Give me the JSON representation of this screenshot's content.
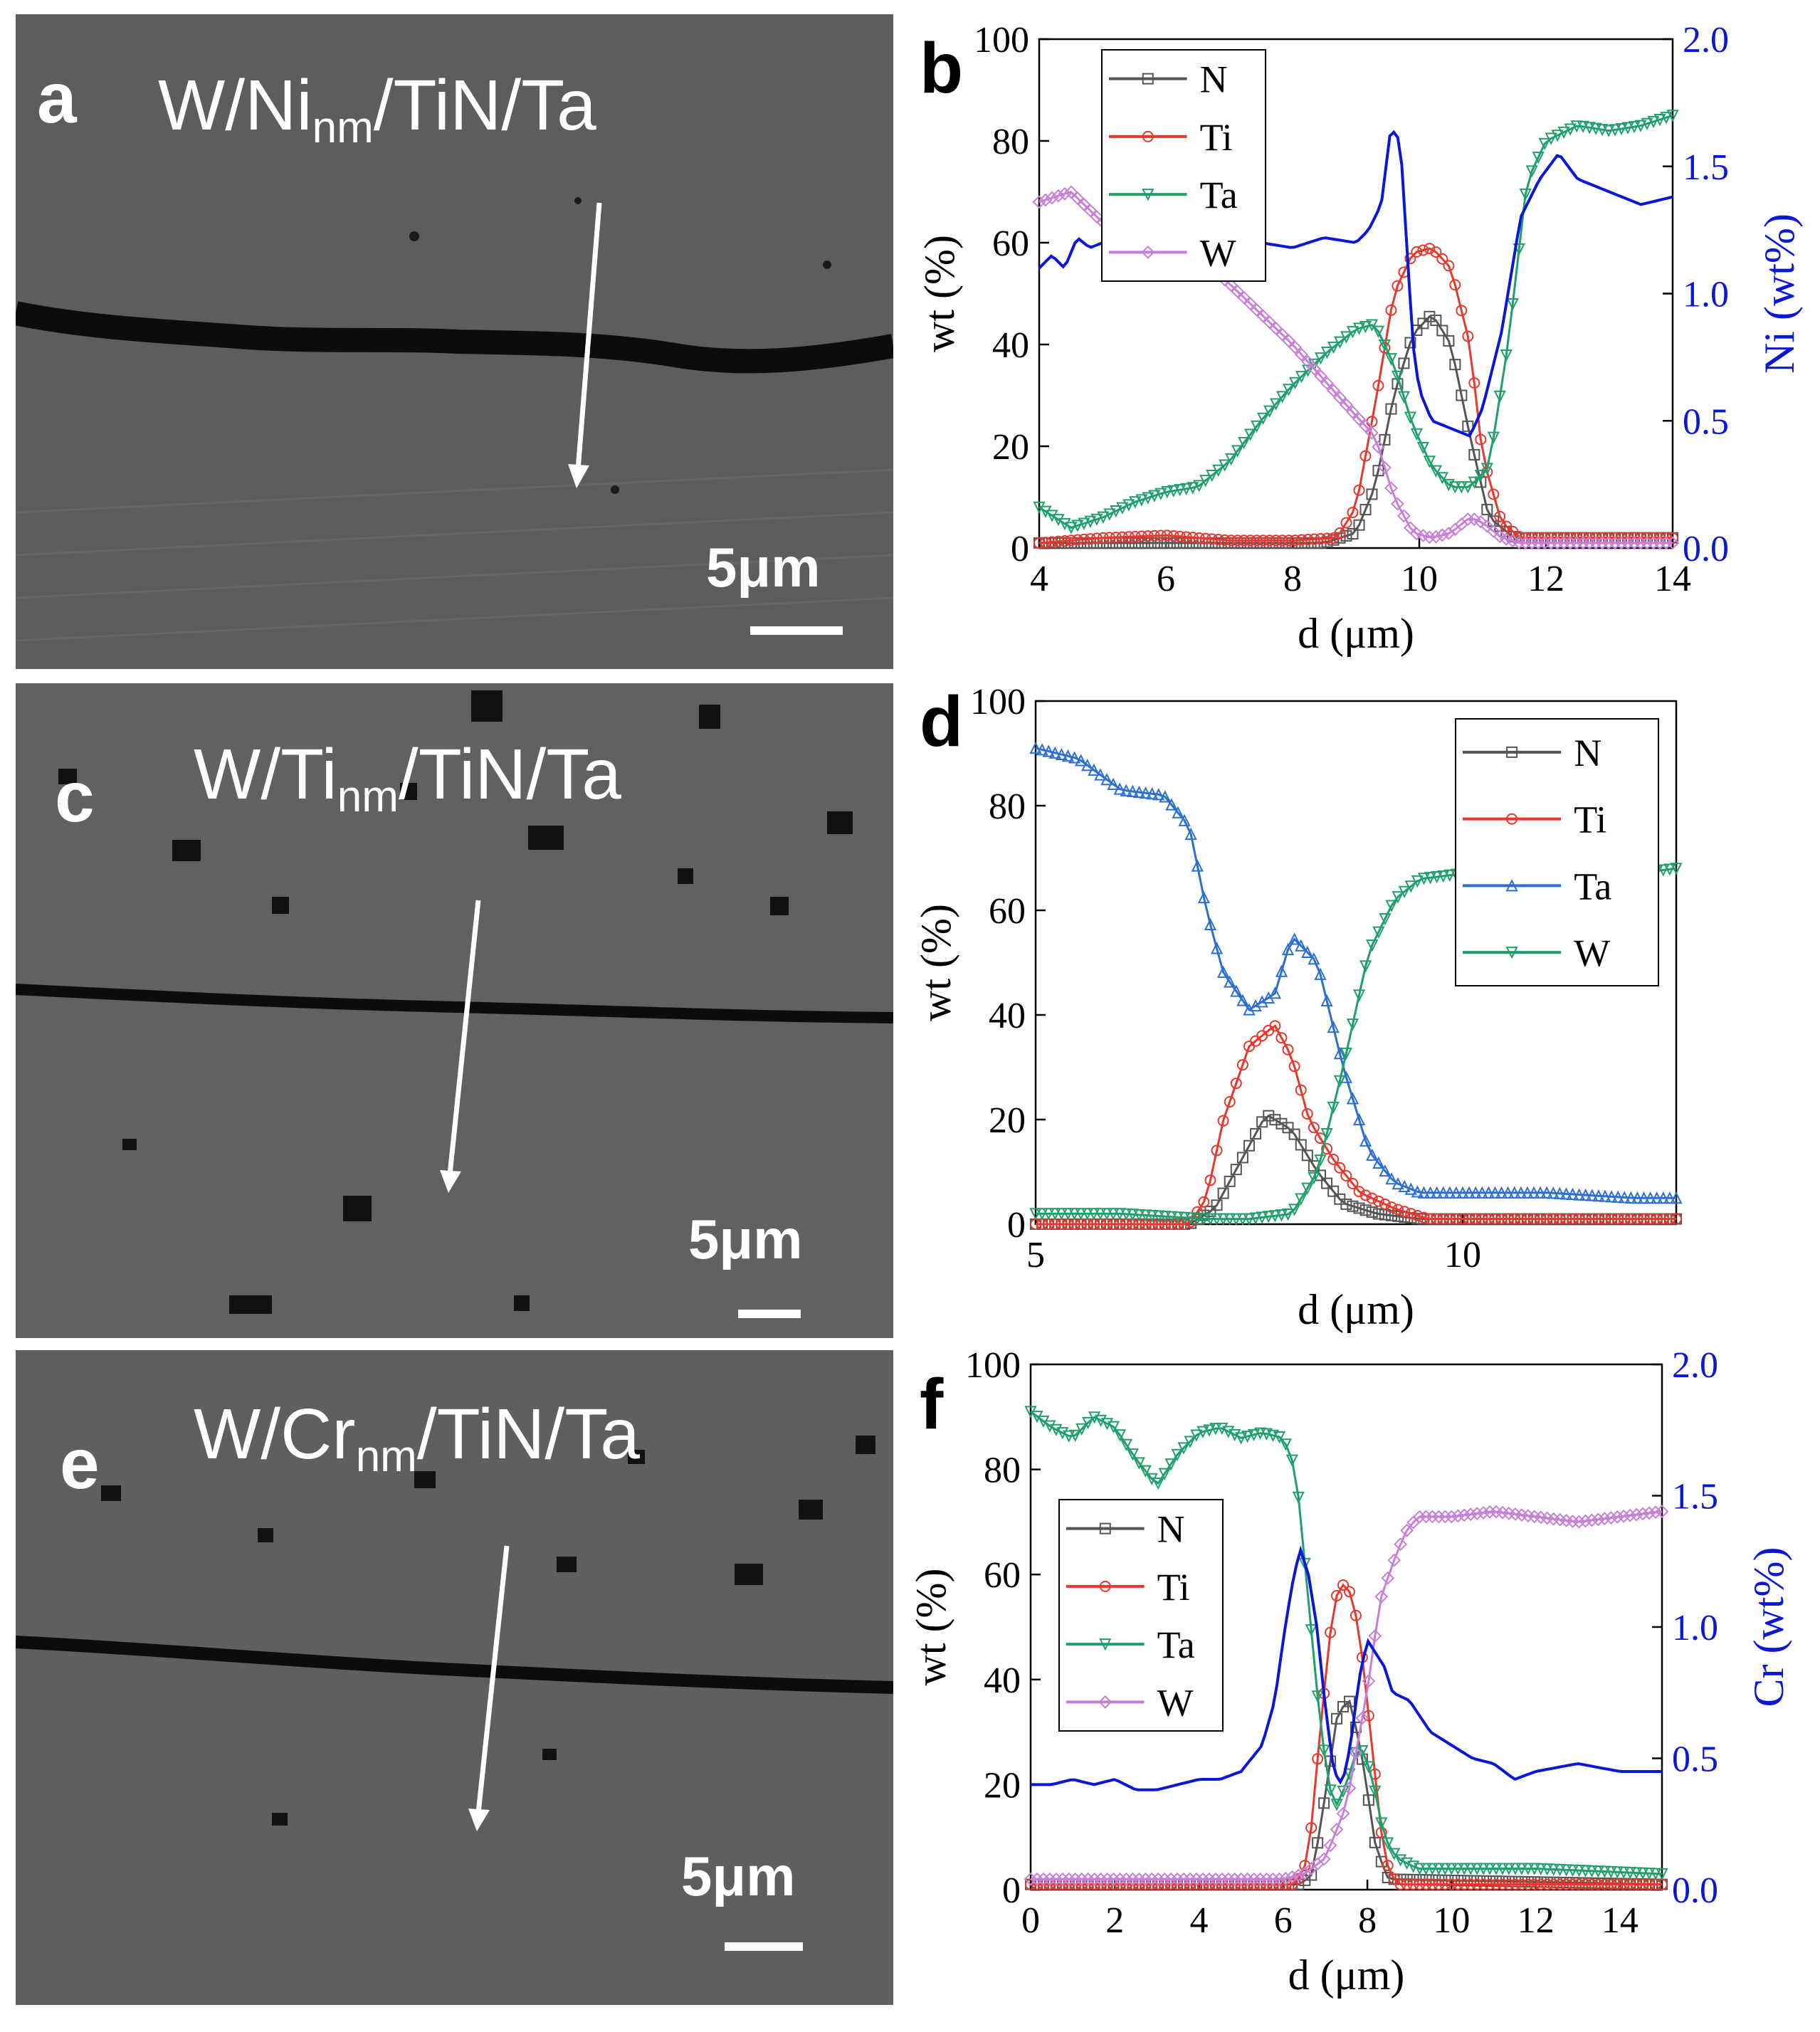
{
  "sem_panels": [
    {
      "letter": "a",
      "title_main": "W/Ni",
      "title_sub": "nm",
      "title_rest": "/TiN/Ta",
      "scale_label": "5μm"
    },
    {
      "letter": "c",
      "title_main": "W/Ti",
      "title_sub": "nm",
      "title_rest": "/TiN/Ta",
      "scale_label": "5μm"
    },
    {
      "letter": "e",
      "title_main": "W/Cr",
      "title_sub": "nm",
      "title_rest": "/TiN/Ta",
      "scale_label": "5μm"
    }
  ],
  "colors": {
    "N": "#555555",
    "Ti": "#e8372c",
    "Ta_b": "#1fa06a",
    "W_b": "#c77ed8",
    "Ni": "#0b17d6",
    "Ta_d": "#2b6fd0",
    "W_d": "#1fa06a",
    "Cr": "#0b17d6"
  },
  "chart_data": [
    {
      "id": "b",
      "letter": "b",
      "type": "line",
      "xlabel": "d (μm)",
      "ylabel": "wt (%)",
      "y2label": "Ni (wt%)",
      "xlim": [
        4,
        14
      ],
      "ylim": [
        0,
        100
      ],
      "y2lim": [
        0,
        2
      ],
      "xticks": [
        4,
        6,
        8,
        10,
        12,
        14
      ],
      "yticks": [
        0,
        20,
        40,
        60,
        80,
        100
      ],
      "y2ticks": [
        "0.0",
        "0.5",
        "1.0",
        "1.5",
        "2.0"
      ],
      "legend_position": "top-left",
      "series": [
        {
          "name": "N",
          "marker": "square",
          "x": [
            4,
            8.5,
            9.0,
            9.3,
            9.6,
            9.9,
            10.2,
            10.5,
            10.8,
            11.1,
            11.5,
            14
          ],
          "y": [
            1,
            1,
            3,
            12,
            30,
            42,
            46,
            40,
            22,
            6,
            2,
            2
          ]
        },
        {
          "name": "Ti",
          "marker": "circle",
          "x": [
            4,
            5,
            6,
            7,
            8,
            8.7,
            9.0,
            9.3,
            9.6,
            9.9,
            10.2,
            10.5,
            10.8,
            11.0,
            11.3,
            11.6,
            14
          ],
          "y": [
            1,
            2,
            2.5,
            1.5,
            1.5,
            2,
            8,
            28,
            50,
            58,
            59,
            55,
            40,
            18,
            5,
            2,
            2
          ]
        },
        {
          "name": "Ta",
          "marker": "triangle-down",
          "x": [
            4,
            4.5,
            5,
            5.5,
            6,
            6.5,
            7,
            7.5,
            8,
            8.5,
            9,
            9.3,
            9.6,
            9.9,
            10.2,
            10.5,
            10.8,
            11.1,
            11.4,
            11.7,
            12.0,
            12.5,
            13,
            13.5,
            14
          ],
          "y": [
            8,
            4,
            6,
            9,
            11,
            12,
            17,
            25,
            32,
            38,
            43,
            44,
            36,
            24,
            16,
            12,
            12,
            16,
            40,
            72,
            80,
            83,
            82,
            83,
            85
          ]
        },
        {
          "name": "W",
          "marker": "diamond",
          "x": [
            4,
            4.5,
            5,
            5.5,
            6,
            6.5,
            7,
            7.5,
            8,
            8.5,
            9,
            9.3,
            9.6,
            9.9,
            10.2,
            10.5,
            10.8,
            11.0,
            11.3,
            11.6,
            14
          ],
          "y": [
            68,
            70,
            64,
            63,
            60,
            57,
            52,
            46,
            40,
            33,
            26,
            22,
            10,
            3,
            2,
            3,
            6,
            5,
            2,
            1,
            1
          ]
        },
        {
          "name": "Ni",
          "axis": "right",
          "marker": "none",
          "x": [
            4,
            4.2,
            4.4,
            4.6,
            4.8,
            5.0,
            5.5,
            6,
            6.5,
            7,
            7.5,
            8,
            8.5,
            9.0,
            9.2,
            9.4,
            9.55,
            9.7,
            9.8,
            9.9,
            10.0,
            10.2,
            10.4,
            10.6,
            10.8,
            11.0,
            11.3,
            11.6,
            11.9,
            12.2,
            12.5,
            13,
            13.5,
            14
          ],
          "y": [
            1.1,
            1.15,
            1.1,
            1.22,
            1.18,
            1.2,
            1.2,
            1.22,
            1.2,
            1.22,
            1.2,
            1.18,
            1.22,
            1.2,
            1.25,
            1.35,
            1.65,
            1.6,
            1.2,
            0.8,
            0.62,
            0.5,
            0.48,
            0.46,
            0.44,
            0.55,
            0.85,
            1.3,
            1.45,
            1.55,
            1.45,
            1.4,
            1.35,
            1.38
          ]
        }
      ]
    },
    {
      "id": "d",
      "letter": "d",
      "type": "line",
      "xlabel": "d (μm)",
      "ylabel": "wt (%)",
      "xlim": [
        5,
        12.5
      ],
      "ylim": [
        0,
        100
      ],
      "xticks": [
        5,
        10
      ],
      "yticks": [
        0,
        20,
        40,
        60,
        80,
        100
      ],
      "legend_position": "top-right",
      "series": [
        {
          "name": "N",
          "marker": "square",
          "x": [
            5,
            6.8,
            7.1,
            7.4,
            7.7,
            8.0,
            8.3,
            8.6,
            9.0,
            9.5,
            12.5
          ],
          "y": [
            0,
            0,
            3,
            12,
            21,
            18,
            10,
            4,
            2,
            1,
            1
          ]
        },
        {
          "name": "Ti",
          "marker": "circle",
          "x": [
            5,
            6.8,
            7.0,
            7.2,
            7.5,
            7.8,
            8.0,
            8.2,
            8.5,
            8.8,
            9.2,
            9.6,
            10,
            12.5
          ],
          "y": [
            0,
            0,
            5,
            20,
            34,
            38,
            32,
            20,
            12,
            6,
            3,
            1,
            1,
            1
          ]
        },
        {
          "name": "Ta",
          "marker": "triangle-up",
          "x": [
            5,
            5.5,
            6.0,
            6.5,
            6.8,
            7.0,
            7.2,
            7.5,
            7.8,
            8.0,
            8.3,
            8.6,
            8.9,
            9.2,
            9.5,
            10,
            11,
            12,
            12.5
          ],
          "y": [
            91,
            89,
            83,
            82,
            76,
            60,
            48,
            41,
            44,
            55,
            50,
            30,
            14,
            8,
            6,
            6,
            6,
            5,
            5
          ]
        },
        {
          "name": "W",
          "marker": "triangle-down",
          "x": [
            5,
            6,
            7,
            7.5,
            8.0,
            8.3,
            8.6,
            8.9,
            9.2,
            9.5,
            10,
            11,
            12,
            12.5
          ],
          "y": [
            2,
            2,
            1,
            1,
            2,
            10,
            30,
            52,
            62,
            66,
            67,
            67,
            67,
            68
          ]
        }
      ]
    },
    {
      "id": "f",
      "letter": "f",
      "type": "line",
      "xlabel": "d (μm)",
      "ylabel": "wt (%)",
      "y2label": "Cr (wt%)",
      "xlim": [
        0,
        15
      ],
      "ylim": [
        0,
        100
      ],
      "y2lim": [
        0,
        2
      ],
      "xticks": [
        0,
        2,
        4,
        6,
        8,
        10,
        12,
        14
      ],
      "yticks": [
        0,
        20,
        40,
        60,
        80,
        100
      ],
      "y2ticks": [
        "0.0",
        "0.5",
        "1.0",
        "1.5",
        "2.0"
      ],
      "legend_position": "mid-left",
      "series": [
        {
          "name": "N",
          "marker": "square",
          "x": [
            0,
            6.4,
            6.7,
            7.0,
            7.3,
            7.6,
            7.9,
            8.2,
            8.5,
            15
          ],
          "y": [
            1,
            1,
            3,
            18,
            34,
            36,
            24,
            8,
            2,
            1
          ]
        },
        {
          "name": "Ti",
          "marker": "circle",
          "x": [
            0,
            6.3,
            6.6,
            6.9,
            7.2,
            7.5,
            7.8,
            8.1,
            8.4,
            8.7,
            15
          ],
          "y": [
            1,
            1,
            6,
            32,
            55,
            59,
            50,
            28,
            6,
            1,
            1
          ]
        },
        {
          "name": "Ta",
          "marker": "triangle-down",
          "x": [
            0,
            0.5,
            1,
            1.5,
            2,
            2.5,
            3,
            3.5,
            4,
            4.5,
            5,
            5.5,
            6,
            6.3,
            6.6,
            6.9,
            7.2,
            7.5,
            7.8,
            8.1,
            8.4,
            8.7,
            9.2,
            10,
            12,
            15
          ],
          "y": [
            91,
            88,
            86,
            90,
            88,
            82,
            77,
            83,
            87,
            88,
            86,
            87,
            86,
            80,
            55,
            30,
            15,
            20,
            28,
            22,
            10,
            6,
            4,
            4,
            4,
            3
          ]
        },
        {
          "name": "W",
          "marker": "diamond",
          "x": [
            0,
            3,
            6,
            6.5,
            7.0,
            7.5,
            8.0,
            8.3,
            8.6,
            8.9,
            9.2,
            9.5,
            10,
            11,
            12,
            13,
            14,
            15
          ],
          "y": [
            2,
            2,
            2,
            3,
            6,
            16,
            38,
            55,
            62,
            68,
            71,
            71,
            71,
            72,
            71,
            70,
            71,
            72
          ]
        },
        {
          "name": "Cr",
          "axis": "right",
          "marker": "none",
          "x": [
            0,
            0.5,
            1,
            1.5,
            2,
            2.5,
            3,
            3.5,
            4,
            4.5,
            5,
            5.5,
            5.8,
            6.0,
            6.2,
            6.4,
            6.6,
            6.8,
            7.0,
            7.2,
            7.4,
            7.6,
            7.8,
            8.0,
            8.2,
            8.4,
            8.6,
            9.0,
            9.5,
            10,
            10.5,
            11,
            11.5,
            12,
            13,
            14,
            15
          ],
          "y": [
            0.4,
            0.4,
            0.42,
            0.4,
            0.42,
            0.38,
            0.38,
            0.4,
            0.42,
            0.42,
            0.45,
            0.55,
            0.72,
            0.95,
            1.15,
            1.3,
            1.2,
            1.0,
            0.7,
            0.45,
            0.4,
            0.55,
            0.8,
            0.95,
            0.9,
            0.85,
            0.75,
            0.72,
            0.6,
            0.55,
            0.5,
            0.48,
            0.42,
            0.45,
            0.48,
            0.45,
            0.45
          ]
        }
      ]
    }
  ]
}
